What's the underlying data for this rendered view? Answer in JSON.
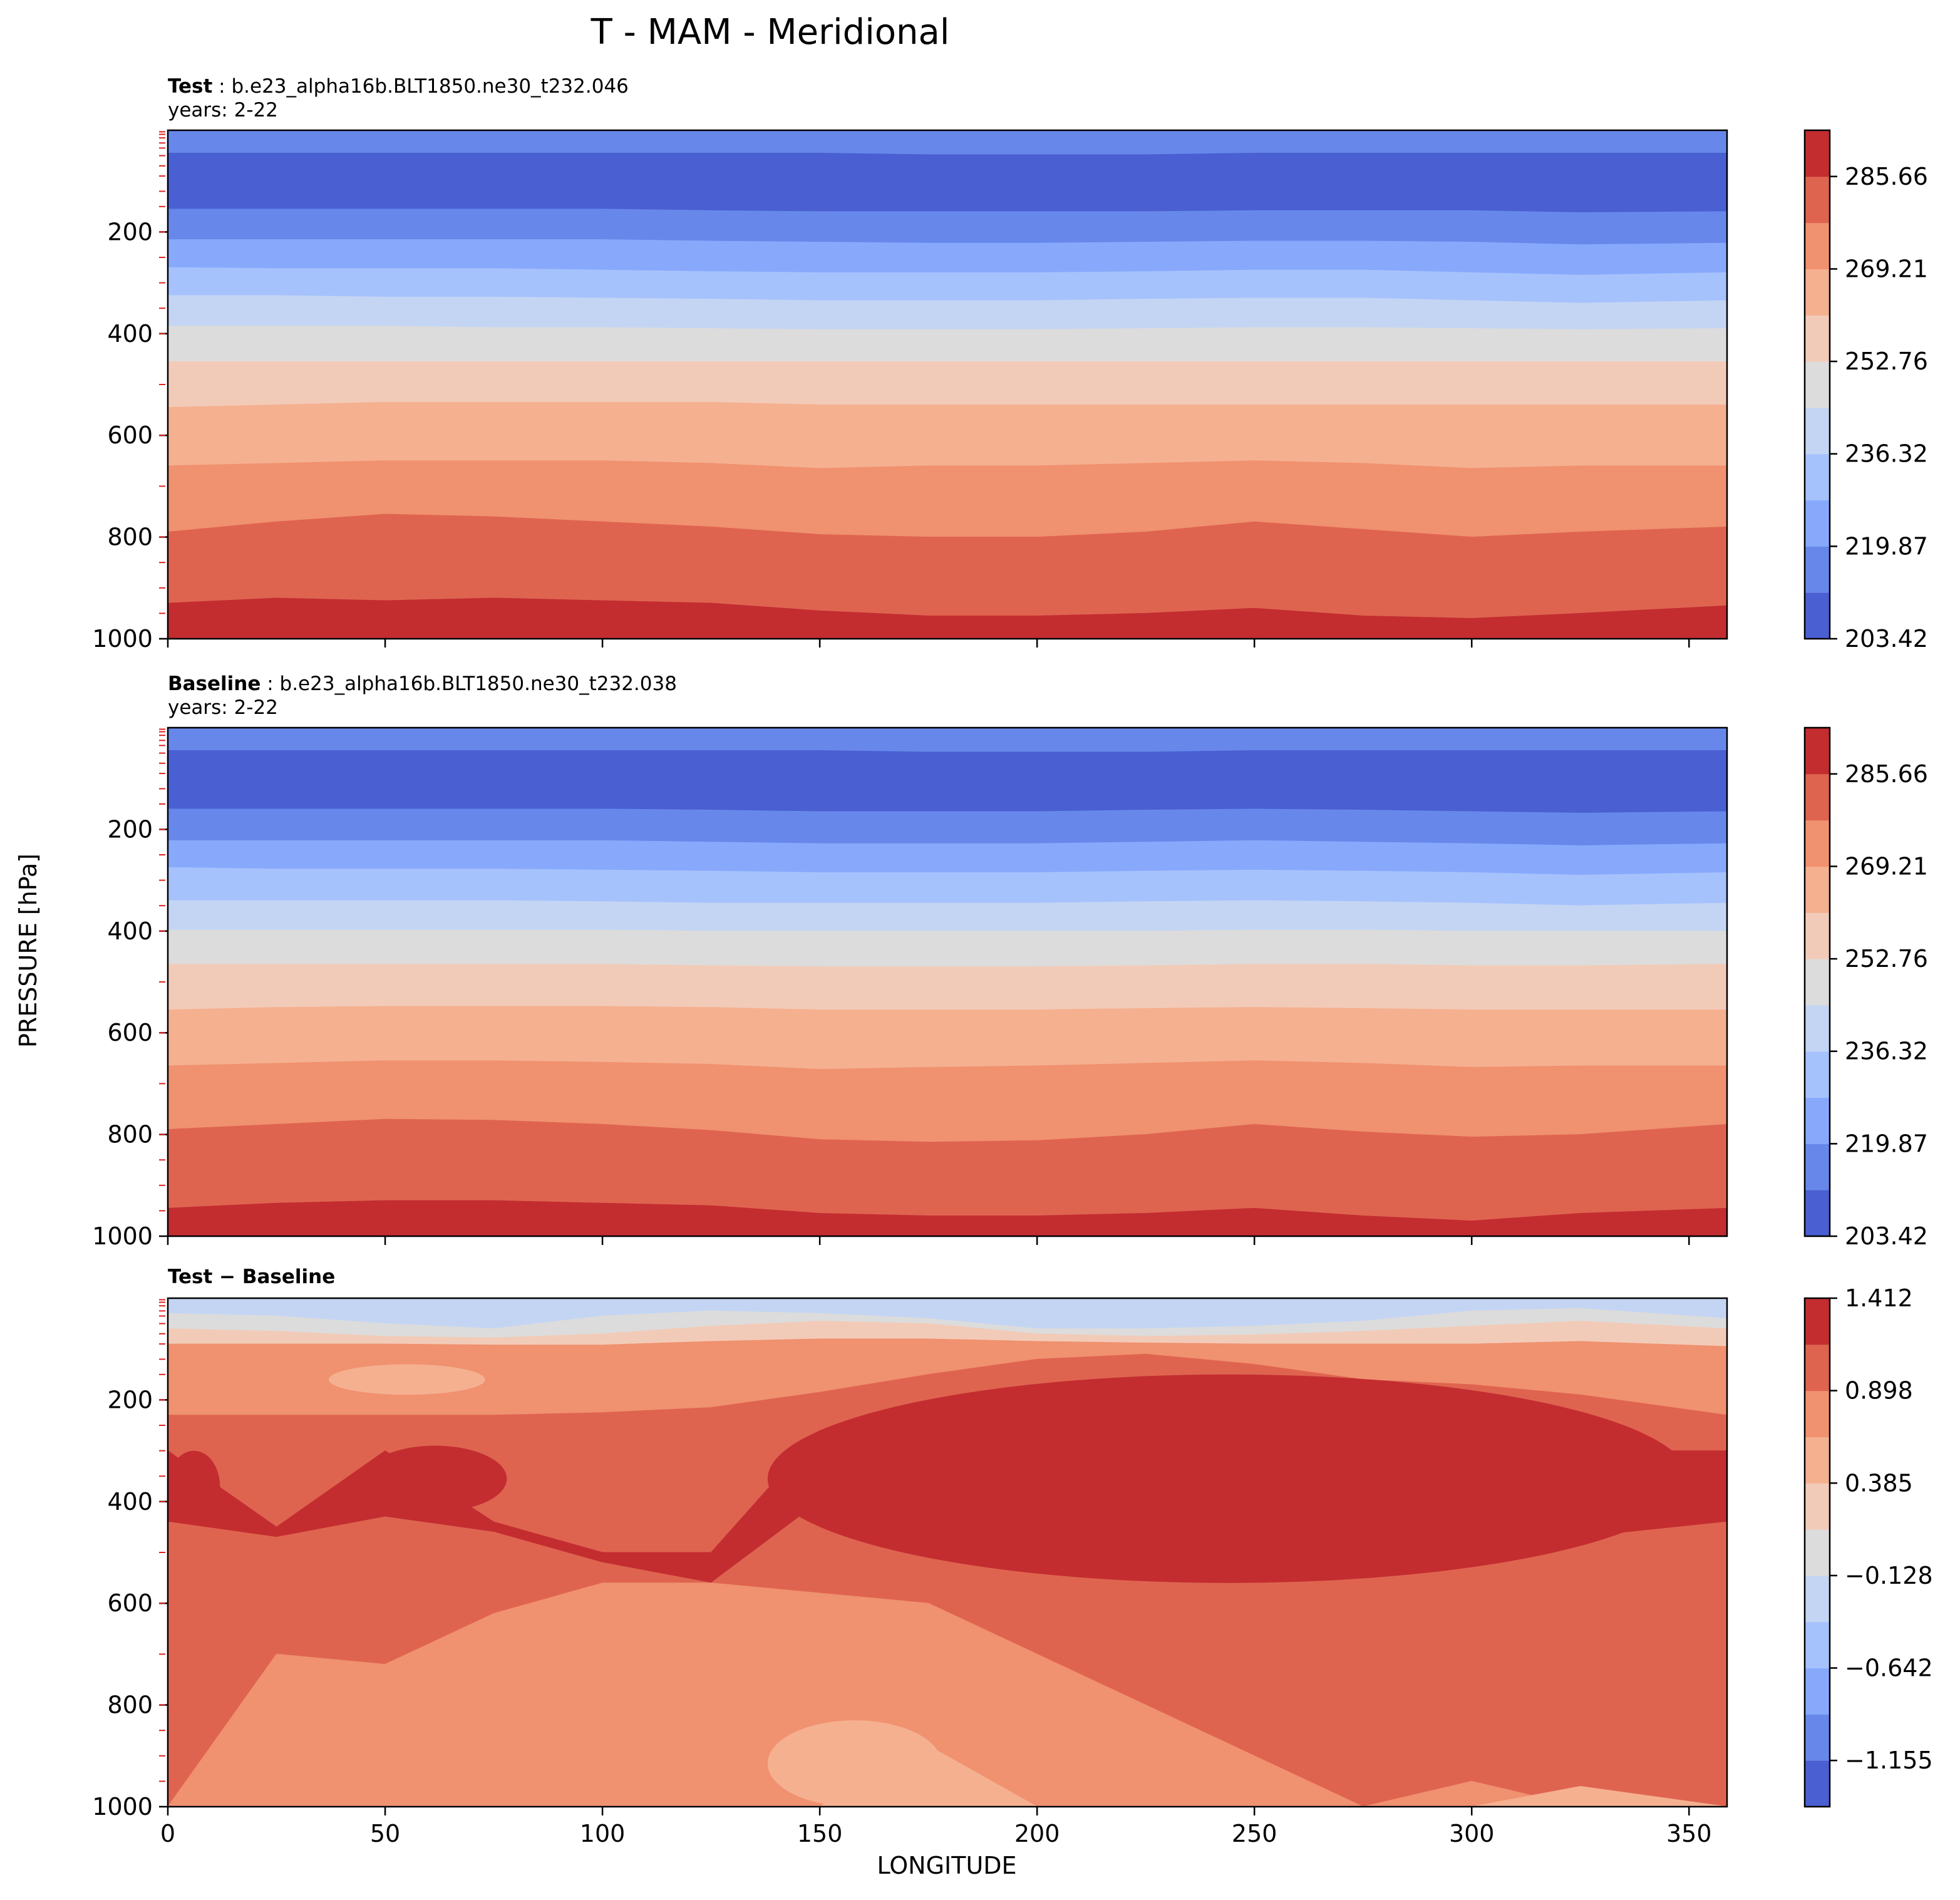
{
  "figure": {
    "title": "T - MAM - Meridional",
    "ylabel": "PRESSURE [hPa]",
    "xlabel": "LONGITUDE"
  },
  "colors": {
    "palette": [
      "#4a5fd2",
      "#6788ea",
      "#88a9fb",
      "#a6c2fd",
      "#c4d5f3",
      "#dcdcdc",
      "#f2cbb8",
      "#f5b090",
      "#f0916f",
      "#df6450",
      "#c32d30"
    ]
  },
  "chart_data": [
    {
      "type": "contourf",
      "panel": "test",
      "label_bold": "Test",
      "label_rest": " : b.e23_alpha16b.BLT1850.ne30_t232.046",
      "years": "years: 2-22",
      "x": {
        "min": 0,
        "max": 358.75,
        "ticks": [
          0,
          50,
          100,
          150,
          200,
          250,
          300,
          350
        ],
        "tick_labels_visible": false
      },
      "y": {
        "min": 1000,
        "max": 0,
        "ticks": [
          200,
          400,
          600,
          800,
          1000
        ],
        "tick_labels": [
          "200",
          "400",
          "600",
          "800",
          "1000"
        ]
      },
      "colorbar": {
        "ticks": [
          "203.42",
          "219.87",
          "236.32",
          "252.76",
          "269.21",
          "285.66"
        ],
        "levels": 11
      },
      "contours": [
        {
          "level": 0,
          "pressure": [
            0,
            0,
            0,
            0,
            0,
            0,
            0,
            0
          ]
        },
        {
          "level": 1,
          "pressure": [
            0,
            0,
            0,
            0,
            0,
            0,
            0,
            0
          ]
        },
        {
          "level": 2,
          "pressure": [
            0,
            0,
            0,
            0,
            0,
            0,
            0,
            0
          ]
        },
        {
          "level": 3,
          "pressure": [
            0,
            0,
            0,
            0,
            0,
            0,
            0,
            0
          ]
        },
        {
          "level": 4,
          "pressure": [
            0,
            0,
            0,
            0,
            0,
            0,
            0,
            0
          ]
        },
        {
          "level": 5,
          "pressure": [
            0,
            0,
            0,
            0,
            0,
            0,
            0,
            0
          ]
        },
        {
          "level": 6,
          "pressure": [
            0,
            0,
            0,
            0,
            0,
            0,
            0,
            0
          ]
        },
        {
          "level": 7,
          "pressure": [
            0,
            0,
            0,
            0,
            0,
            0,
            0,
            0
          ]
        },
        {
          "level": 8,
          "pressure": [
            0,
            0,
            0,
            0,
            0,
            0,
            0,
            0
          ]
        },
        {
          "level": 9,
          "pressure": [
            0,
            0,
            0,
            0,
            0,
            0,
            0,
            0
          ]
        },
        {
          "level": 10,
          "pressure": [
            0,
            0,
            0,
            0,
            0,
            0,
            0,
            0
          ]
        }
      ],
      "bands_lon": [
        0,
        25,
        50,
        75,
        100,
        125,
        150,
        175,
        200,
        225,
        250,
        275,
        300,
        325,
        358.75
      ],
      "bands": [
        {
          "color": 1,
          "top": [
            3,
            3,
            3,
            3,
            3,
            3,
            3,
            3,
            3,
            3,
            3,
            3,
            3,
            3,
            3
          ]
        },
        {
          "color": 0,
          "top": [
            45,
            45,
            45,
            45,
            45,
            45,
            45,
            48,
            48,
            48,
            45,
            45,
            45,
            45,
            45
          ]
        },
        {
          "color": 1,
          "top": [
            155,
            155,
            155,
            155,
            155,
            158,
            160,
            160,
            160,
            160,
            158,
            158,
            158,
            162,
            160
          ]
        },
        {
          "color": 2,
          "top": [
            215,
            215,
            215,
            215,
            215,
            218,
            220,
            222,
            222,
            220,
            218,
            218,
            220,
            225,
            222
          ]
        },
        {
          "color": 3,
          "top": [
            270,
            272,
            272,
            272,
            275,
            278,
            280,
            280,
            280,
            278,
            275,
            275,
            280,
            285,
            280
          ]
        },
        {
          "color": 4,
          "top": [
            325,
            325,
            328,
            328,
            330,
            332,
            335,
            335,
            335,
            332,
            330,
            330,
            335,
            340,
            335
          ]
        },
        {
          "color": 5,
          "top": [
            385,
            385,
            385,
            388,
            388,
            390,
            392,
            392,
            392,
            390,
            388,
            388,
            390,
            392,
            390
          ]
        },
        {
          "color": 6,
          "top": [
            455,
            455,
            455,
            455,
            455,
            455,
            455,
            455,
            455,
            455,
            455,
            455,
            455,
            455,
            455
          ]
        },
        {
          "color": 7,
          "top": [
            545,
            540,
            535,
            535,
            535,
            535,
            540,
            540,
            540,
            540,
            540,
            540,
            540,
            540,
            540
          ]
        },
        {
          "color": 8,
          "top": [
            660,
            655,
            650,
            650,
            650,
            655,
            665,
            660,
            660,
            655,
            650,
            655,
            665,
            660,
            660
          ]
        },
        {
          "color": 9,
          "top": [
            790,
            770,
            755,
            760,
            770,
            780,
            795,
            800,
            800,
            790,
            770,
            785,
            800,
            790,
            780
          ]
        },
        {
          "color": 10,
          "top": [
            930,
            920,
            925,
            920,
            925,
            930,
            945,
            955,
            955,
            950,
            940,
            955,
            960,
            950,
            935
          ]
        }
      ]
    },
    {
      "type": "contourf",
      "panel": "baseline",
      "label_bold": "Baseline",
      "label_rest": " : b.e23_alpha16b.BLT1850.ne30_t232.038",
      "years": "years: 2-22",
      "x": {
        "min": 0,
        "max": 358.75,
        "ticks": [
          0,
          50,
          100,
          150,
          200,
          250,
          300,
          350
        ],
        "tick_labels_visible": false
      },
      "y": {
        "min": 1000,
        "max": 0,
        "ticks": [
          200,
          400,
          600,
          800,
          1000
        ],
        "tick_labels": [
          "200",
          "400",
          "600",
          "800",
          "1000"
        ]
      },
      "colorbar": {
        "ticks": [
          "203.42",
          "219.87",
          "236.32",
          "252.76",
          "269.21",
          "285.66"
        ],
        "levels": 11
      },
      "bands_lon": [
        0,
        25,
        50,
        75,
        100,
        125,
        150,
        175,
        200,
        225,
        250,
        275,
        300,
        325,
        358.75
      ],
      "bands": [
        {
          "color": 1,
          "top": [
            3,
            3,
            3,
            3,
            3,
            3,
            3,
            3,
            3,
            3,
            3,
            3,
            3,
            3,
            3
          ]
        },
        {
          "color": 0,
          "top": [
            45,
            45,
            45,
            45,
            45,
            45,
            45,
            48,
            48,
            48,
            45,
            45,
            45,
            45,
            45
          ]
        },
        {
          "color": 1,
          "top": [
            160,
            160,
            160,
            160,
            160,
            162,
            165,
            165,
            165,
            162,
            160,
            162,
            165,
            168,
            165
          ]
        },
        {
          "color": 2,
          "top": [
            222,
            222,
            222,
            222,
            222,
            225,
            228,
            228,
            228,
            225,
            222,
            225,
            228,
            232,
            228
          ]
        },
        {
          "color": 3,
          "top": [
            275,
            278,
            278,
            278,
            280,
            282,
            285,
            285,
            285,
            282,
            280,
            282,
            285,
            290,
            285
          ]
        },
        {
          "color": 4,
          "top": [
            340,
            340,
            340,
            340,
            342,
            345,
            345,
            345,
            345,
            342,
            340,
            342,
            345,
            350,
            345
          ]
        },
        {
          "color": 5,
          "top": [
            398,
            398,
            398,
            398,
            398,
            400,
            400,
            400,
            400,
            400,
            398,
            398,
            400,
            400,
            400
          ]
        },
        {
          "color": 6,
          "top": [
            465,
            465,
            465,
            465,
            465,
            468,
            470,
            470,
            470,
            468,
            465,
            465,
            468,
            468,
            465
          ]
        },
        {
          "color": 7,
          "top": [
            555,
            550,
            548,
            548,
            548,
            550,
            555,
            555,
            555,
            552,
            550,
            552,
            555,
            555,
            555
          ]
        },
        {
          "color": 8,
          "top": [
            665,
            660,
            655,
            655,
            658,
            662,
            672,
            668,
            665,
            660,
            655,
            660,
            668,
            665,
            665
          ]
        },
        {
          "color": 9,
          "top": [
            790,
            780,
            770,
            772,
            780,
            792,
            810,
            815,
            812,
            800,
            780,
            795,
            805,
            800,
            780
          ]
        },
        {
          "color": 10,
          "top": [
            945,
            935,
            930,
            930,
            935,
            940,
            955,
            960,
            960,
            955,
            945,
            960,
            970,
            955,
            945
          ]
        }
      ]
    },
    {
      "type": "contourf",
      "panel": "diff",
      "label_bold": "Test − Baseline",
      "x": {
        "min": 0,
        "max": 358.75,
        "ticks": [
          0,
          50,
          100,
          150,
          200,
          250,
          300,
          350
        ],
        "tick_labels": [
          "0",
          "50",
          "100",
          "150",
          "200",
          "250",
          "300",
          "350"
        ]
      },
      "y": {
        "min": 1000,
        "max": 0,
        "ticks": [
          200,
          400,
          600,
          800,
          1000
        ],
        "tick_labels": [
          "200",
          "400",
          "600",
          "800",
          "1000"
        ]
      },
      "colorbar": {
        "ticks": [
          "1.412",
          "0.898",
          "0.385",
          "−0.128",
          "−0.642",
          "−1.155"
        ],
        "levels": 11
      },
      "bands_lon": [
        0,
        25,
        50,
        75,
        100,
        125,
        150,
        175,
        200,
        225,
        250,
        275,
        300,
        325,
        358.75
      ],
      "bands": [
        {
          "color": 4,
          "top": [
            0,
            0,
            0,
            0,
            0,
            0,
            0,
            0,
            0,
            0,
            0,
            0,
            0,
            0,
            0
          ]
        },
        {
          "color": 5,
          "top": [
            30,
            35,
            50,
            60,
            35,
            25,
            30,
            40,
            60,
            60,
            55,
            45,
            25,
            20,
            40
          ]
        },
        {
          "color": 6,
          "top": [
            60,
            65,
            75,
            78,
            70,
            55,
            45,
            50,
            70,
            75,
            72,
            65,
            55,
            45,
            60
          ]
        },
        {
          "color": 8,
          "top": [
            90,
            90,
            90,
            92,
            92,
            85,
            80,
            80,
            85,
            88,
            90,
            90,
            90,
            85,
            95
          ]
        },
        {
          "color": 9,
          "top": [
            230,
            230,
            230,
            230,
            225,
            215,
            185,
            150,
            120,
            110,
            130,
            160,
            170,
            190,
            230
          ]
        },
        {
          "color": 10,
          "top": [
            300,
            450,
            300,
            440,
            500,
            500,
            260,
            240,
            200,
            250,
            400,
            420,
            300,
            300,
            300
          ]
        },
        {
          "color": 9,
          "top": [
            440,
            470,
            430,
            460,
            520,
            560,
            400,
            410,
            420,
            500,
            550,
            470,
            530,
            470,
            440
          ]
        },
        {
          "color": 8,
          "top": [
            1000,
            700,
            720,
            620,
            560,
            560,
            580,
            600,
            700,
            800,
            900,
            1000,
            950,
            1000,
            1000
          ]
        },
        {
          "color": 7,
          "top": [
            1000,
            1000,
            1000,
            1000,
            1000,
            1000,
            1000,
            880,
            1000,
            1000,
            1000,
            1000,
            1000,
            960,
            1000
          ]
        }
      ],
      "features": [
        {
          "color": 10,
          "lon": [
            0,
            12
          ],
          "p": [
            300,
            440
          ]
        },
        {
          "color": 10,
          "lon": [
            45,
            78
          ],
          "p": [
            290,
            420
          ]
        },
        {
          "color": 10,
          "lon": [
            138,
            350
          ],
          "p": [
            150,
            560
          ]
        },
        {
          "color": 7,
          "lon": [
            37,
            73
          ],
          "p": [
            130,
            190
          ]
        },
        {
          "color": 7,
          "lon": [
            138,
            178
          ],
          "p": [
            830,
            1000
          ]
        }
      ]
    }
  ]
}
